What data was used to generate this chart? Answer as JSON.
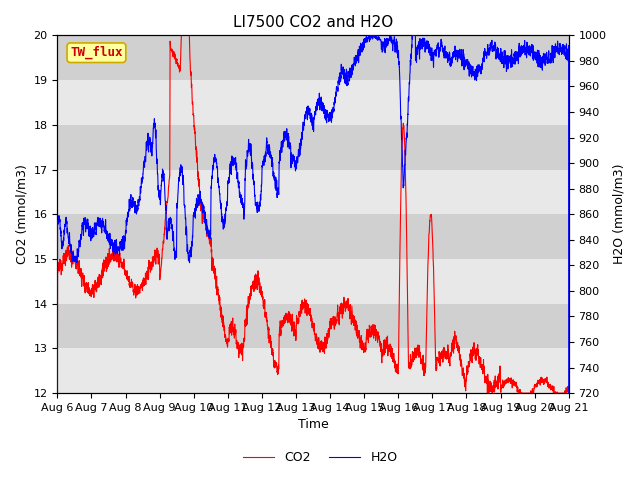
{
  "title": "LI7500 CO2 and H2O",
  "xlabel": "Time",
  "ylabel_left": "CO2 (mmol/m3)",
  "ylabel_right": "H2O (mmol/m3)",
  "co2_color": "#FF0000",
  "h2o_color": "#0000FF",
  "legend_label_co2": "CO2",
  "legend_label_h2o": "H2O",
  "site_label": "TW_flux",
  "ylim_left": [
    12.0,
    20.0
  ],
  "ylim_right": [
    720,
    1000
  ],
  "yticks_left": [
    12.0,
    13.0,
    14.0,
    15.0,
    16.0,
    17.0,
    18.0,
    19.0,
    20.0
  ],
  "yticks_right": [
    720,
    740,
    760,
    780,
    800,
    820,
    840,
    860,
    880,
    900,
    920,
    940,
    960,
    980,
    1000
  ],
  "xtick_labels": [
    "Aug 6",
    "Aug 7",
    "Aug 8",
    "Aug 9",
    "Aug 10",
    "Aug 11",
    "Aug 12",
    "Aug 13",
    "Aug 14",
    "Aug 15",
    "Aug 16",
    "Aug 17",
    "Aug 18",
    "Aug 19",
    "Aug 20",
    "Aug 21"
  ],
  "band_color_light": "#E8E8E8",
  "band_color_dark": "#D0D0D0",
  "title_fontsize": 11,
  "axis_label_fontsize": 9,
  "tick_fontsize": 8,
  "legend_fontsize": 9,
  "figwidth": 6.4,
  "figheight": 4.8,
  "dpi": 100
}
